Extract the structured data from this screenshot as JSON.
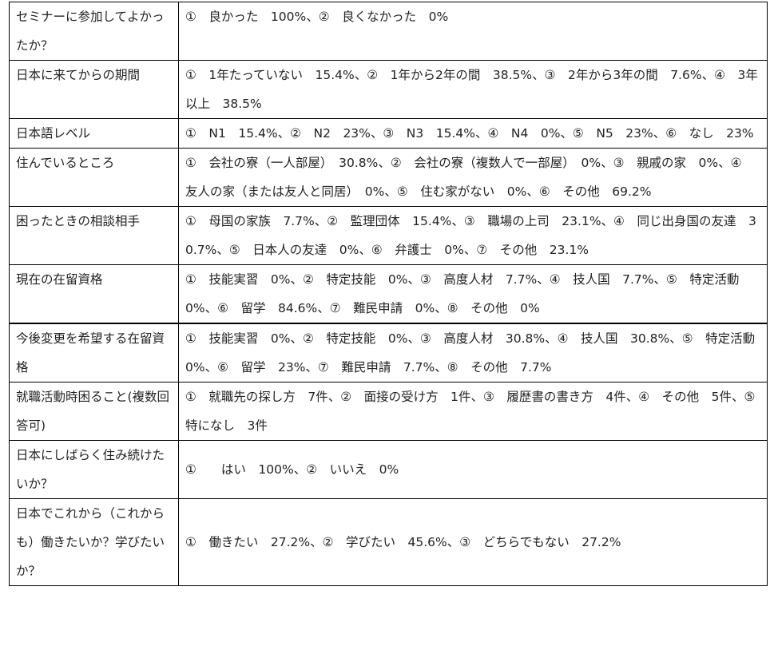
{
  "rows": [
    {
      "question": "セミナーに参加してよかったか？",
      "answer": "①　良かった　100%、②　良くなかった　0%"
    },
    {
      "question": "日本に来てからの期間",
      "answer": "①　1年たっていない　15.4%、②　1年から2年の間　38.5%、③　2年から3年の間　7.6%、④　3年以上　38.5%"
    },
    {
      "question": "日本語レベル",
      "answer": "①　N1　15.4%、②　N2　23%、③　N3　15.4%、④　N4　0%、⑤　N5　23%、⑥　なし　23%"
    },
    {
      "question": "住んでいるところ",
      "answer": "①　会社の寮（一人部屋）　30.8%、②　会社の寮（複数人で一部屋）　0%、③　親戚の家　0%、④　友人の家（または友人と同居）　0%、⑤　住む家がない　0%、⑥　その他　69.2%"
    },
    {
      "question": "困ったときの相談相手",
      "answer": "①　母国の家族　7.7%、②　監理団体　15.4%、③　職場の上司　23.1%、④　同じ出身国の友達　30.7%、⑤　日本人の友達　0%、⑥　弁護士　0%、⑦　その他　23.1%"
    },
    {
      "question": "現在の在留資格",
      "answer": "①　技能実習　0%、②　特定技能　0%、③　高度人材　7.7%、④　技人国　7.7%、⑤　特定活動　0%、⑥　留学　84.6%、⑦　難民申請　0%、⑧　その他　0%"
    },
    {
      "question": "今後変更を希望する在留資格",
      "answer": "①　技能実習　0%、②　特定技能　0%、③　高度人材　30.8%、④　技人国　30.8%、⑤　特定活動　0%、⑥　留学　23%、⑦　難民申請　7.7%、⑧　その他　7.7%"
    },
    {
      "question": "就職活動時困ること(複数回答可)",
      "answer": "①　就職先の探し方　7件、②　面接の受け方　1件、③　履歴書の書き方　4件、④　その他　5件、⑤　特になし　3件"
    },
    {
      "question": "日本にしばらく住み続けたいか？",
      "answer": "①　　はい　100%、②　いいえ　0%"
    },
    {
      "question": "日本でこれから（これからも）働きたいか？学びたいか？",
      "answer": "①　働きたい　27.2%、②　学びたい　45.6%、③　どちらでもない　27.2%"
    }
  ]
}
